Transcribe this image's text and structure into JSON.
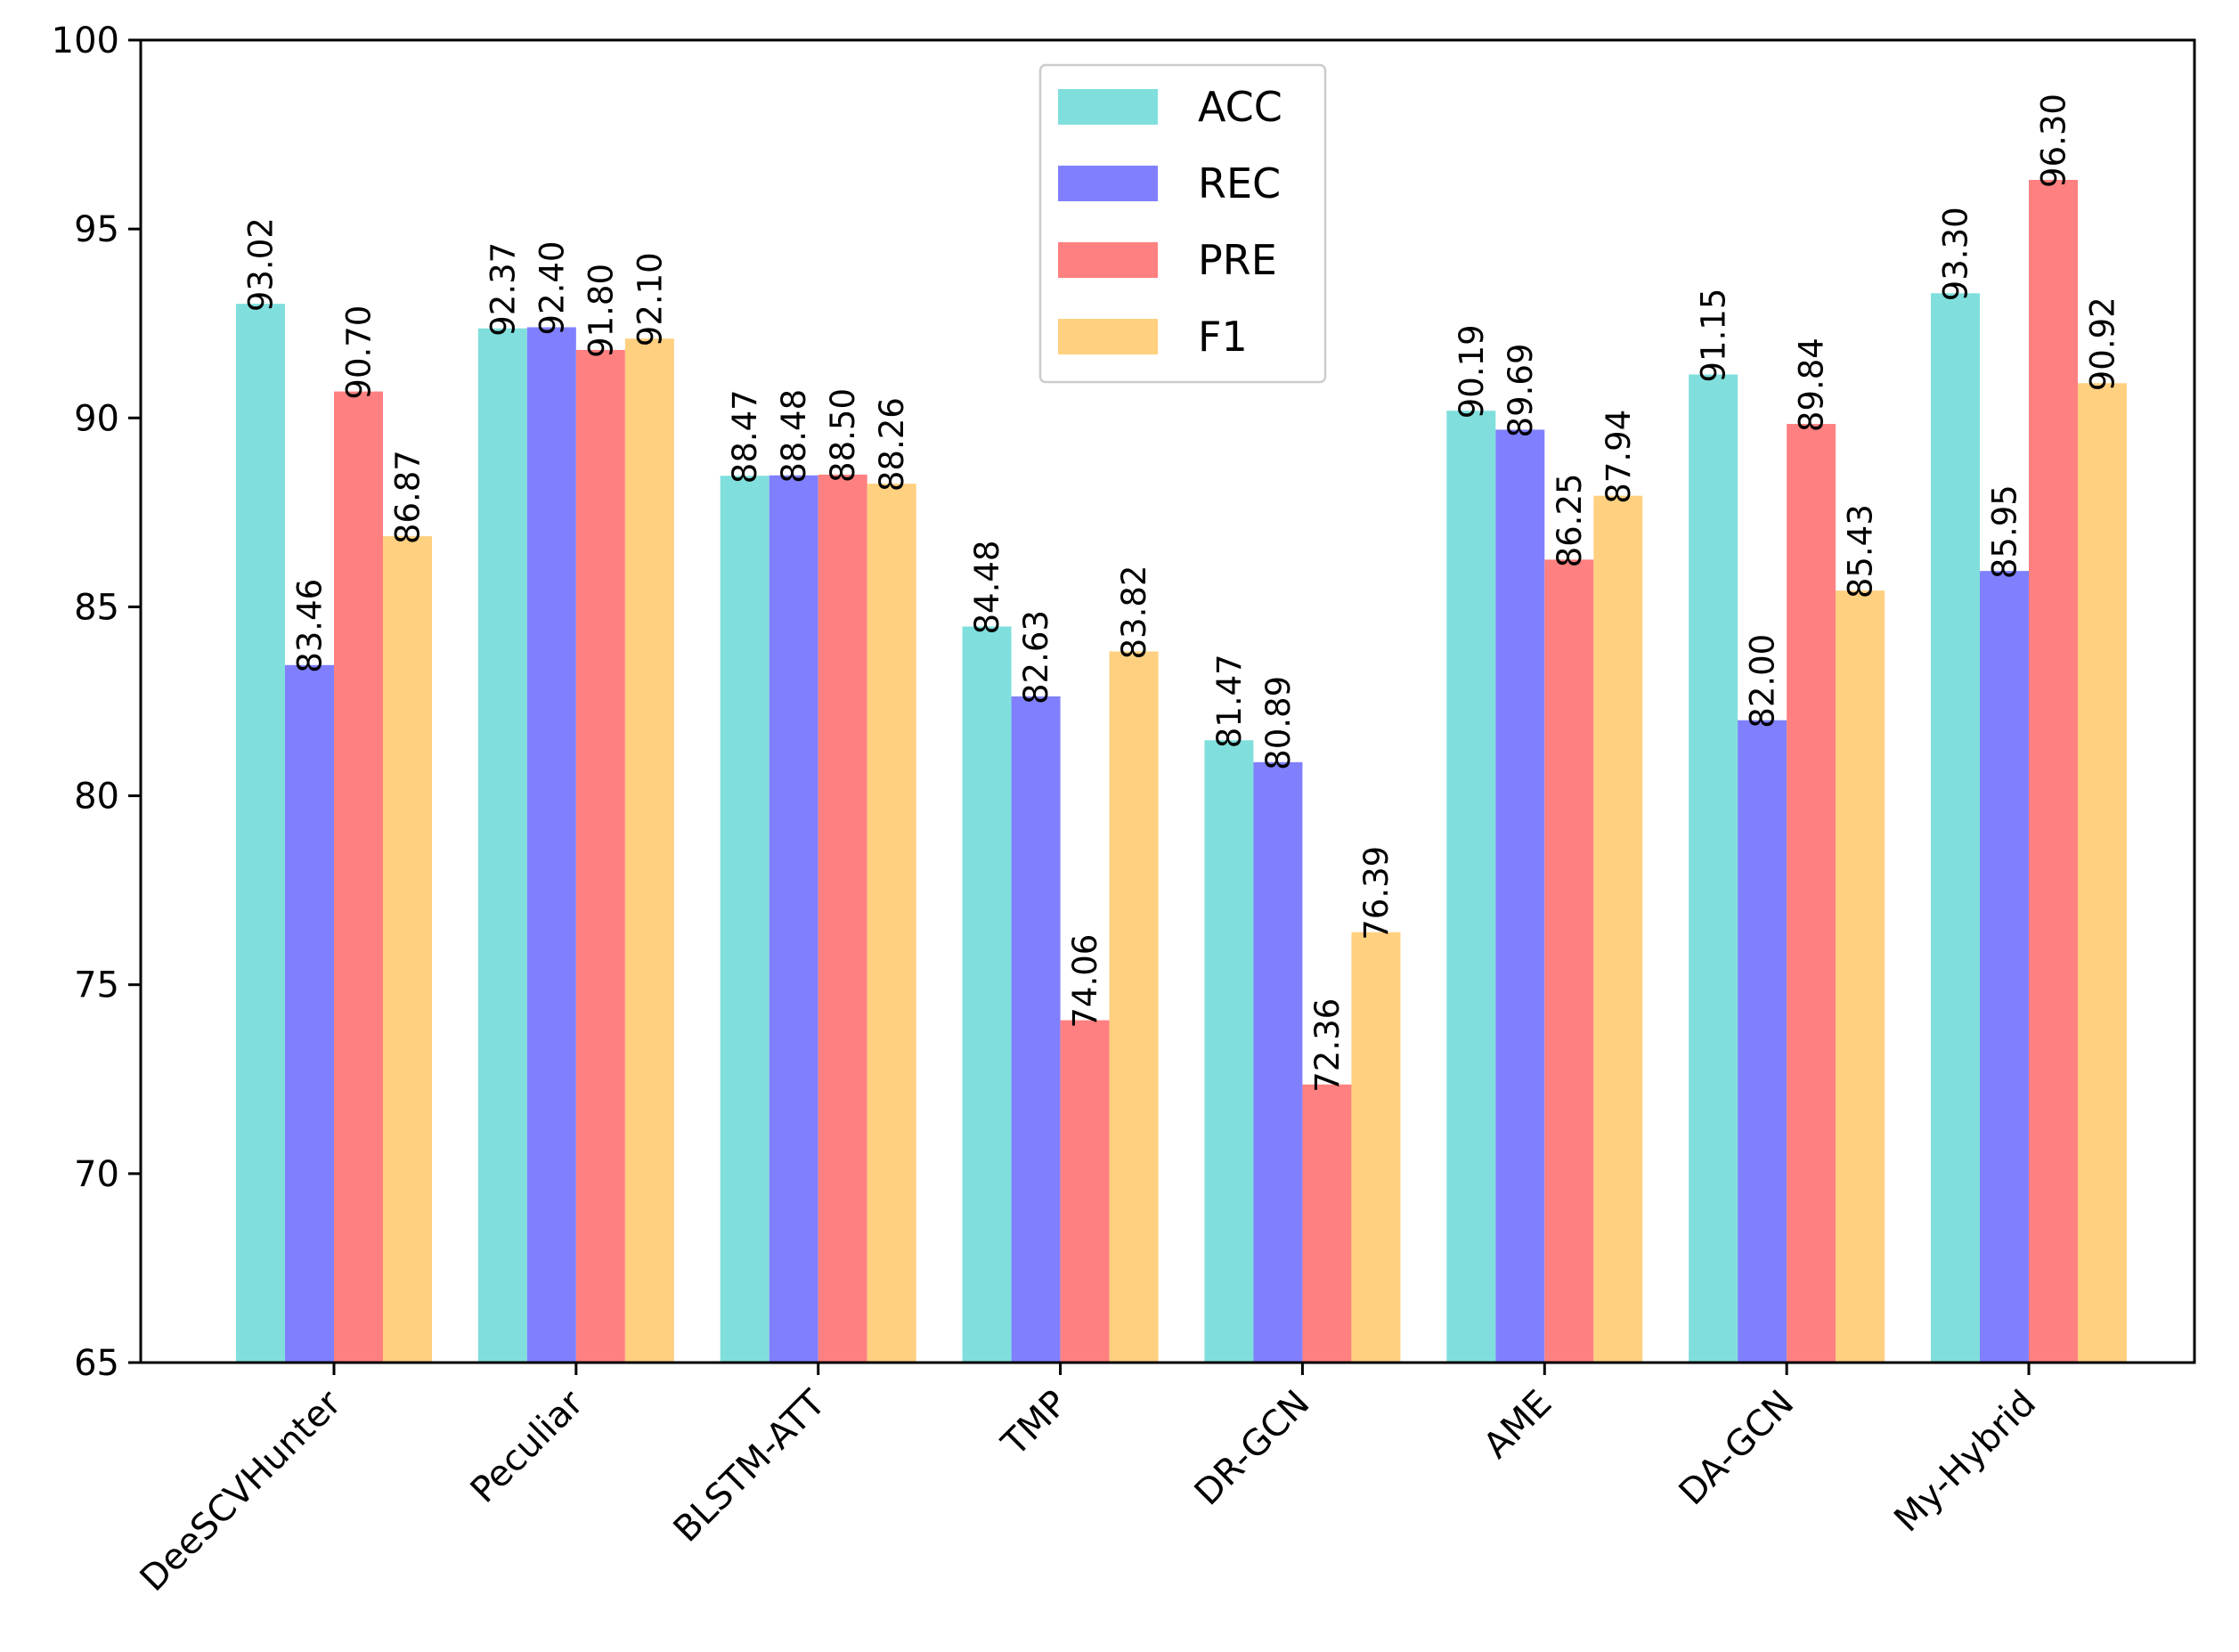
{
  "chart_data": {
    "type": "bar",
    "title": "",
    "xlabel": "",
    "ylabel": "",
    "ylim": [
      65,
      100
    ],
    "yticks": [
      65,
      70,
      75,
      80,
      85,
      90,
      95,
      100
    ],
    "ytick_labels": [
      "65",
      "70",
      "75",
      "80",
      "85",
      "90",
      "95",
      "100"
    ],
    "categories": [
      "DeeSCVHunter",
      "Peculiar",
      "BLSTM-ATT",
      "TMP",
      "DR-GCN",
      "AME",
      "DA-GCN",
      "My-Hybrid"
    ],
    "series": [
      {
        "name": "ACC",
        "color": "#80dfdc",
        "values": [
          93.02,
          92.37,
          88.47,
          84.48,
          81.47,
          90.19,
          91.15,
          93.3
        ],
        "labels": [
          "93.02",
          "92.37",
          "88.47",
          "84.48",
          "81.47",
          "90.19",
          "91.15",
          "93.30"
        ]
      },
      {
        "name": "REC",
        "color": "#8080ff",
        "values": [
          83.46,
          92.4,
          88.48,
          82.63,
          80.89,
          89.69,
          82.0,
          85.95
        ],
        "labels": [
          "83.46",
          "92.40",
          "88.48",
          "82.63",
          "80.89",
          "89.69",
          "82.00",
          "85.95"
        ]
      },
      {
        "name": "PRE",
        "color": "#ff8080",
        "values": [
          90.7,
          91.8,
          88.5,
          74.06,
          72.36,
          86.25,
          89.84,
          96.3
        ],
        "labels": [
          "90.70",
          "91.80",
          "88.50",
          "74.06",
          "72.36",
          "86.25",
          "89.84",
          "96.30"
        ]
      },
      {
        "name": "F1",
        "color": "#ffd080",
        "values": [
          86.87,
          92.1,
          88.26,
          83.82,
          76.39,
          87.94,
          85.43,
          90.92
        ],
        "labels": [
          "86.87",
          "92.10",
          "88.26",
          "83.82",
          "76.39",
          "87.94",
          "85.43",
          "90.92"
        ]
      }
    ],
    "legend_position": "top-center",
    "grid": false
  }
}
